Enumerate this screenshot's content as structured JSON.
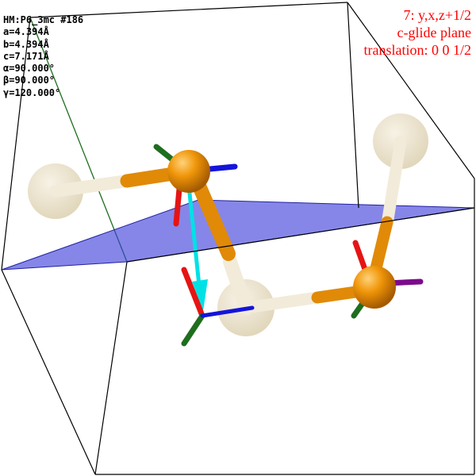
{
  "cell": {
    "space_group": "HM:P6_3mc #186",
    "a": "a=4.394Å",
    "b": "b=4.394Å",
    "c": "c=7.171Å",
    "alpha": "α=90.000°",
    "beta": "β=90.000°",
    "gamma": "γ=120.000°"
  },
  "operation": {
    "symop": "7: y,x,z+1/2",
    "element": "c-glide plane",
    "translation": "translation: 0 0 1/2"
  },
  "colors": {
    "text_cell": "#000000",
    "text_operation": "#ff0000",
    "glide_plane": "#3c3cdc",
    "atom": "#f0960a",
    "ghost_atom": "#ebe1c8",
    "glide_vector": "#00e1e6",
    "axis_x": "#e61414",
    "axis_y": "#1e6e1e",
    "axis_z": "#1414dc",
    "axis_extra": "#7d0a8c"
  }
}
